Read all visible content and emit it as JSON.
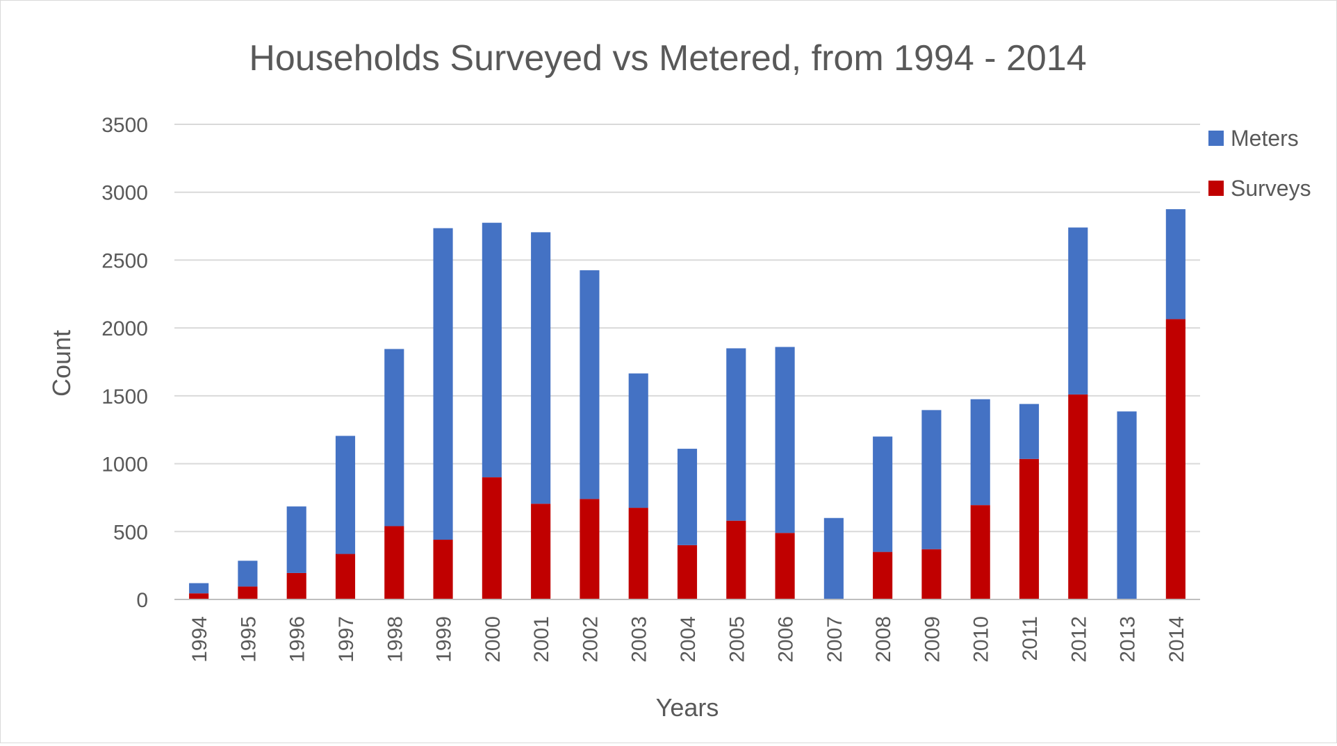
{
  "chart_data": {
    "type": "bar",
    "stacked": true,
    "title": "Households Surveyed vs Metered, from 1994 - 2014",
    "xlabel": "Years",
    "ylabel": "Count",
    "ylim": [
      0,
      3500
    ],
    "yticks": [
      0,
      500,
      1000,
      1500,
      2000,
      2500,
      3000,
      3500
    ],
    "grid": true,
    "legend_position": "right",
    "categories": [
      "1994",
      "1995",
      "1996",
      "1997",
      "1998",
      "1999",
      "2000",
      "2001",
      "2002",
      "2003",
      "2004",
      "2005",
      "2006",
      "2007",
      "2008",
      "2009",
      "2010",
      "2011",
      "2012",
      "2013",
      "2014"
    ],
    "series": [
      {
        "name": "Surveys",
        "color": "#c00000",
        "values": [
          45,
          95,
          195,
          335,
          540,
          440,
          900,
          705,
          740,
          675,
          400,
          580,
          490,
          0,
          350,
          370,
          695,
          1035,
          1510,
          0,
          2065
        ]
      },
      {
        "name": "Meters",
        "color": "#4472c4",
        "values": [
          75,
          190,
          490,
          870,
          1305,
          2295,
          1875,
          2000,
          1685,
          990,
          710,
          1270,
          1370,
          600,
          850,
          1025,
          780,
          405,
          1230,
          1385,
          810
        ]
      }
    ],
    "legend_order": [
      "Meters",
      "Surveys"
    ]
  }
}
